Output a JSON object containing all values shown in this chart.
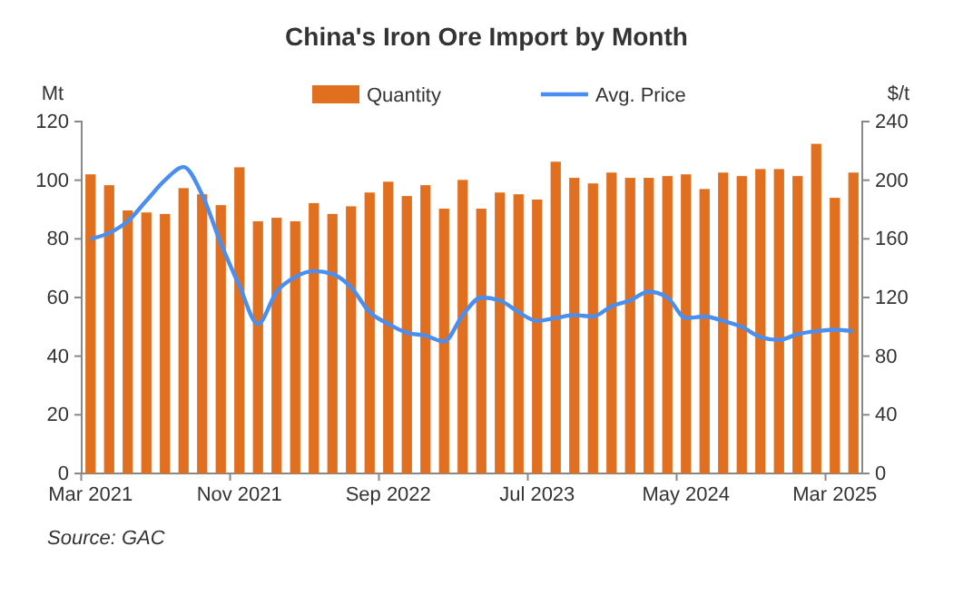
{
  "chart_data": {
    "type": "bar",
    "title": "China's Iron Ore Import by Month",
    "categories": [
      "Mar 2021",
      null,
      null,
      null,
      null,
      null,
      null,
      null,
      "Nov 2021",
      null,
      null,
      null,
      null,
      null,
      null,
      null,
      "Sep 2022",
      null,
      null,
      null,
      null,
      null,
      null,
      null,
      "Jul 2023",
      null,
      null,
      null,
      null,
      null,
      null,
      null,
      "May 2024",
      null,
      null,
      null,
      null,
      null,
      null,
      null,
      "Mar 2025",
      null
    ],
    "series": [
      {
        "name": "Quantity",
        "color": "#e07020",
        "values": [
          102,
          98.3,
          89.7,
          89,
          88.5,
          97.3,
          95.2,
          91.5,
          104.4,
          86,
          87.2,
          86,
          92.2,
          88.5,
          91.1,
          95.8,
          99.5,
          94.6,
          98.3,
          90.3,
          100.1,
          90.3,
          95.8,
          95.2,
          93.4,
          106.3,
          100.8,
          98.9,
          102.6,
          100.8,
          100.8,
          101.4,
          102,
          97,
          102.6,
          101.4,
          103.8,
          103.8,
          101.4,
          112.4,
          94,
          102.6
        ]
      },
      {
        "name": "Avg. Price",
        "type": "line",
        "axis": "y2",
        "color": "#4a8ef0",
        "values": [
          160,
          164,
          172,
          186,
          200,
          209,
          190,
          157,
          128,
          102,
          124,
          134,
          138,
          136,
          127,
          110,
          102,
          96,
          94,
          90,
          108,
          120,
          118,
          110,
          104,
          106,
          108,
          107,
          114,
          118,
          124,
          120,
          106,
          107,
          104,
          100,
          93,
          91,
          95,
          97,
          98,
          97
        ]
      }
    ],
    "ylabel": "Mt",
    "y2label": "$/t",
    "ylim": [
      0,
      120
    ],
    "yticks": [
      0,
      20,
      40,
      60,
      80,
      100,
      120
    ],
    "y2lim": [
      0,
      240
    ],
    "y2ticks": [
      0,
      40,
      80,
      120,
      160,
      200,
      240
    ],
    "legend": "top",
    "grid": false,
    "annotations": [
      "Source: GAC"
    ]
  }
}
